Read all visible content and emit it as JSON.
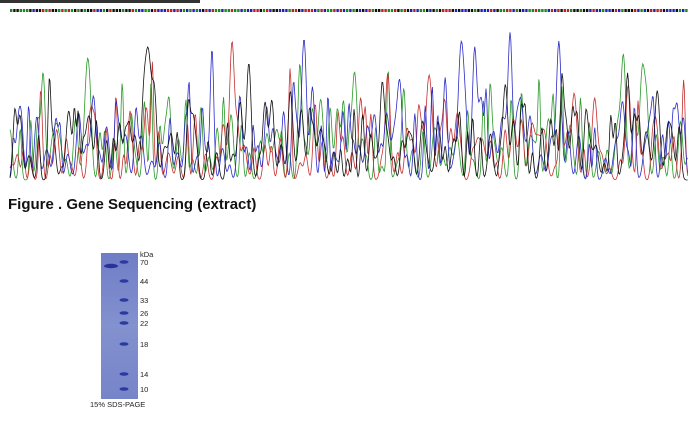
{
  "caption": "Figure . Gene Sequencing (extract)",
  "gel": {
    "unit": "kDa",
    "markers": [
      "70",
      "44",
      "33",
      "26",
      "22",
      "18",
      "14",
      "10"
    ],
    "label": "15% SDS-PAGE"
  }
}
